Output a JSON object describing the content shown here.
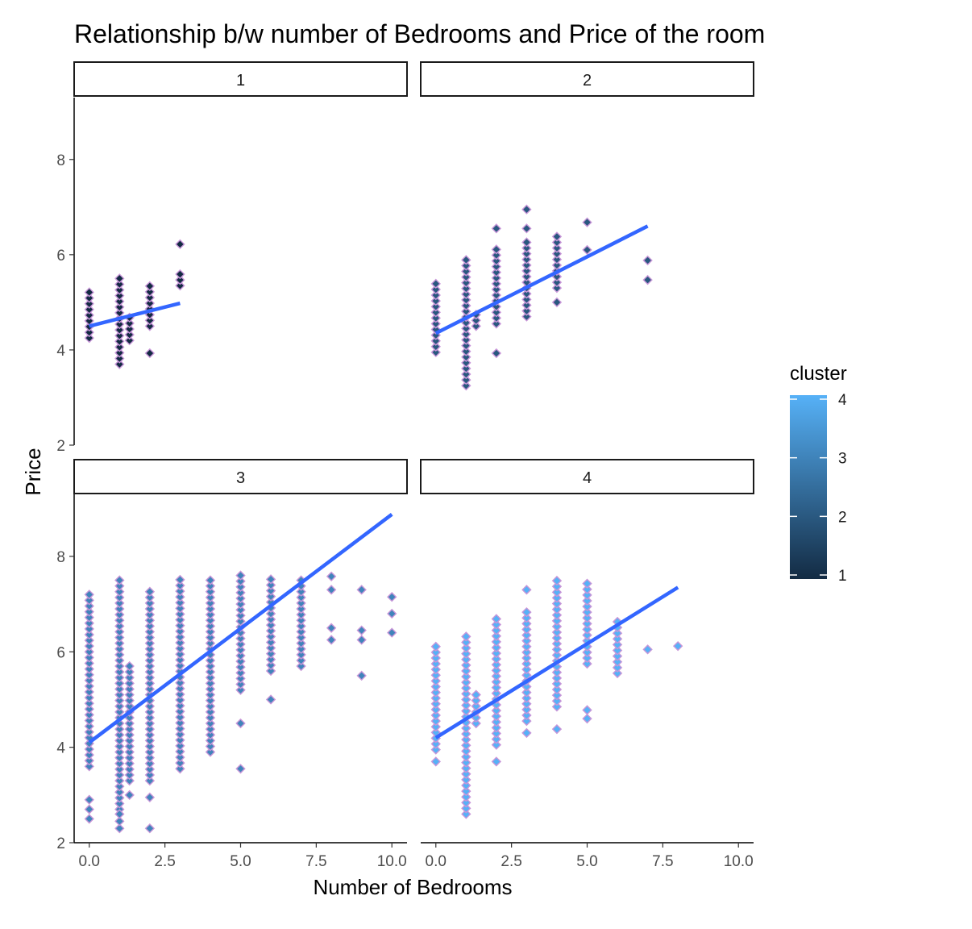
{
  "chart_data": {
    "type": "scatter",
    "title": "Relationship b/w number of Bedrooms and Price of the room",
    "xlabel": "Number of Bedrooms",
    "ylabel": "Price",
    "xlim": [
      -0.5,
      10.5
    ],
    "ylim": [
      2,
      9.3
    ],
    "x_ticks": [
      0,
      2.5,
      5,
      7.5,
      10
    ],
    "x_tick_labels": [
      "0.0",
      "2.5",
      "5.0",
      "7.5",
      "10.0"
    ],
    "y_ticks": [
      2,
      4,
      6,
      8
    ],
    "y_tick_labels": [
      "2",
      "4",
      "6",
      "8"
    ],
    "grid": false,
    "facet_by": "cluster",
    "colors": {
      "point_outline": "#c896d8",
      "fit_line": "#3366ff",
      "cluster_low": "#132b43",
      "cluster_high": "#56b1f7"
    },
    "legend": {
      "title": "cluster",
      "position": "right",
      "type": "colorbar",
      "ticks": [
        "1",
        "2",
        "3",
        "4"
      ]
    },
    "facets": [
      {
        "label": "1",
        "cluster": 1,
        "fit": {
          "x0": 0,
          "y0": 4.5,
          "x1": 3,
          "y1": 4.98
        },
        "columns": [
          {
            "x": 0,
            "min": 4.25,
            "max": 5.25
          },
          {
            "x": 1,
            "min": 3.7,
            "max": 5.55
          },
          {
            "x": 1.33,
            "min": 4.2,
            "max": 4.7
          },
          {
            "x": 2,
            "min": 4.5,
            "max": 5.45
          },
          {
            "x": 3,
            "min": 5.35,
            "max": 5.65
          }
        ],
        "points": [
          {
            "x": 2,
            "y": 3.93
          },
          {
            "x": 3,
            "y": 6.22
          }
        ]
      },
      {
        "label": "2",
        "cluster": 2,
        "fit": {
          "x0": 0,
          "y0": 4.35,
          "x1": 7,
          "y1": 6.6
        },
        "columns": [
          {
            "x": 0,
            "min": 3.95,
            "max": 5.45
          },
          {
            "x": 1,
            "min": 3.25,
            "max": 5.9
          },
          {
            "x": 1.33,
            "min": 4.5,
            "max": 4.85
          },
          {
            "x": 2,
            "min": 4.55,
            "max": 6.2
          },
          {
            "x": 3,
            "min": 4.7,
            "max": 6.3
          },
          {
            "x": 4,
            "min": 5.3,
            "max": 6.4
          }
        ],
        "points": [
          {
            "x": 2,
            "y": 3.93
          },
          {
            "x": 2,
            "y": 6.55
          },
          {
            "x": 3,
            "y": 6.95
          },
          {
            "x": 3,
            "y": 6.55
          },
          {
            "x": 4,
            "y": 5.0
          },
          {
            "x": 5,
            "y": 6.68
          },
          {
            "x": 5,
            "y": 6.1
          },
          {
            "x": 7,
            "y": 5.88
          },
          {
            "x": 7,
            "y": 5.47
          }
        ]
      },
      {
        "label": "3",
        "cluster": 3,
        "fit": {
          "x0": 0,
          "y0": 4.1,
          "x1": 10,
          "y1": 8.88
        },
        "columns": [
          {
            "x": 0,
            "min": 3.6,
            "max": 7.3
          },
          {
            "x": 1,
            "min": 2.7,
            "max": 7.5
          },
          {
            "x": 1.33,
            "min": 3.3,
            "max": 5.7
          },
          {
            "x": 2,
            "min": 3.3,
            "max": 7.3
          },
          {
            "x": 3,
            "min": 3.55,
            "max": 7.55
          },
          {
            "x": 4,
            "min": 3.9,
            "max": 7.6
          },
          {
            "x": 5,
            "min": 5.2,
            "max": 7.6
          },
          {
            "x": 6,
            "min": 5.6,
            "max": 7.6
          },
          {
            "x": 7,
            "min": 5.7,
            "max": 7.55
          }
        ],
        "points": [
          {
            "x": 0,
            "y": 2.5
          },
          {
            "x": 0,
            "y": 2.7
          },
          {
            "x": 0,
            "y": 2.9
          },
          {
            "x": 1,
            "y": 2.3
          },
          {
            "x": 1,
            "y": 2.45
          },
          {
            "x": 1,
            "y": 2.6
          },
          {
            "x": 1.33,
            "y": 3.0
          },
          {
            "x": 2,
            "y": 2.3
          },
          {
            "x": 2,
            "y": 2.95
          },
          {
            "x": 5,
            "y": 4.5
          },
          {
            "x": 5,
            "y": 3.55
          },
          {
            "x": 6,
            "y": 5.0
          },
          {
            "x": 8,
            "y": 7.58
          },
          {
            "x": 8,
            "y": 7.3
          },
          {
            "x": 8,
            "y": 6.5
          },
          {
            "x": 8,
            "y": 6.25
          },
          {
            "x": 9,
            "y": 7.3
          },
          {
            "x": 9,
            "y": 6.45
          },
          {
            "x": 9,
            "y": 6.25
          },
          {
            "x": 9,
            "y": 5.5
          },
          {
            "x": 10,
            "y": 7.15
          },
          {
            "x": 10,
            "y": 6.8
          },
          {
            "x": 10,
            "y": 6.4
          }
        ]
      },
      {
        "label": "4",
        "cluster": 4,
        "fit": {
          "x0": 0,
          "y0": 4.2,
          "x1": 8,
          "y1": 7.35
        },
        "columns": [
          {
            "x": 0,
            "min": 3.95,
            "max": 6.2
          },
          {
            "x": 1,
            "min": 2.6,
            "max": 6.4
          },
          {
            "x": 1.33,
            "min": 4.5,
            "max": 5.2
          },
          {
            "x": 2,
            "min": 4.05,
            "max": 6.75
          },
          {
            "x": 3,
            "min": 4.55,
            "max": 6.9
          },
          {
            "x": 4,
            "min": 4.85,
            "max": 7.55
          },
          {
            "x": 5,
            "min": 5.75,
            "max": 7.45
          },
          {
            "x": 6,
            "min": 5.55,
            "max": 6.65
          }
        ],
        "points": [
          {
            "x": 0,
            "y": 3.7
          },
          {
            "x": 2,
            "y": 3.7
          },
          {
            "x": 3,
            "y": 4.3
          },
          {
            "x": 3,
            "y": 7.3
          },
          {
            "x": 4,
            "y": 4.38
          },
          {
            "x": 5,
            "y": 4.6
          },
          {
            "x": 5,
            "y": 4.78
          },
          {
            "x": 7,
            "y": 6.05
          },
          {
            "x": 8,
            "y": 6.12
          }
        ]
      }
    ]
  }
}
